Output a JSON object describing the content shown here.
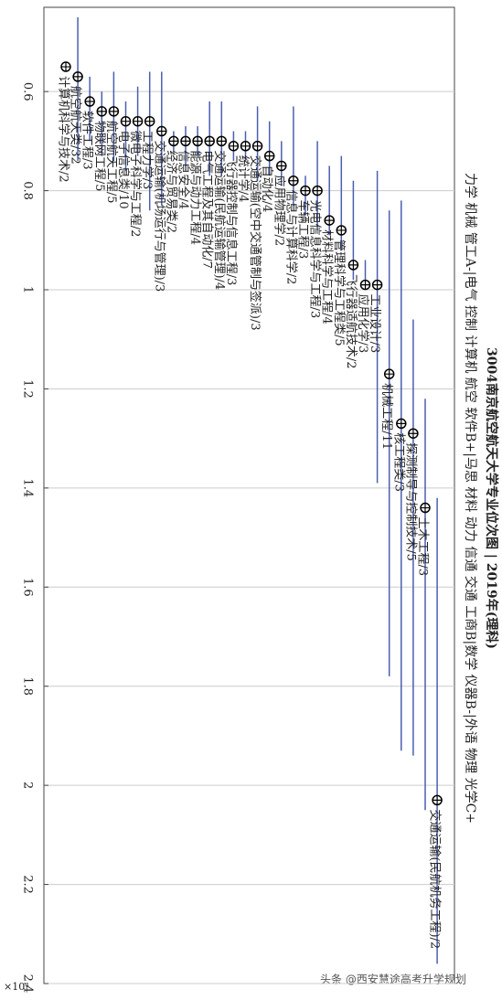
{
  "chart_data": {
    "type": "rank-range",
    "title": "3004南京航空航天大学专业位次图 | 2019年(理科)",
    "subtitle": "力学 机械 管工A-|电气 控制 计算机 航空 软件B+|马思 材料 动力 信通 交通 工商B|数学 仪器B-|外语 物理 光学C+",
    "exponent_label": "×10⁴",
    "watermark": "头条 @西安慧途高考升学规划",
    "categories": [
      "计算机科学与技术/2",
      "航空航天类/32",
      "软件工程/3",
      "物联网工程/5",
      "航空航天工程/5",
      "电子信息类/10",
      "微电子科学与工程/2",
      "工程力学/3",
      "交通运输(机场运行与管理)/3",
      "经济与贸易类/2",
      "信息安全/4",
      "能源与动力工程/4",
      "电气工程及其自动化/7",
      "交通运输(民航运输管理)/4",
      "飞行器控制与信息工程/3",
      "统计学/4",
      "交通运输(空中交通管制与签派)/3",
      "自动化/4",
      "应用物理学/2",
      "信息与计算科学/2",
      "车辆工程/3",
      "光电信息科学与工程/3",
      "材料科学与工程/4",
      "管理科学与工程类/5",
      "飞行器适航技术/2",
      "应用化学/3",
      "工业设计/3",
      "机械工程/11",
      "核工程类/3",
      "探测制导与控制技术/5",
      "土木工程/3",
      "交通运输(民航机务工程)/2"
    ],
    "values": [
      0.55,
      0.57,
      0.62,
      0.64,
      0.64,
      0.66,
      0.66,
      0.66,
      0.68,
      0.7,
      0.7,
      0.7,
      0.7,
      0.7,
      0.71,
      0.71,
      0.71,
      0.73,
      0.75,
      0.78,
      0.8,
      0.8,
      0.86,
      0.88,
      0.95,
      0.99,
      0.99,
      1.17,
      1.27,
      1.29,
      1.44,
      2.03
    ],
    "lower": [
      0.55,
      0.45,
      0.57,
      0.6,
      0.56,
      0.62,
      0.59,
      0.56,
      0.56,
      0.68,
      0.67,
      0.67,
      0.62,
      0.62,
      0.68,
      0.68,
      0.63,
      0.66,
      0.7,
      0.63,
      0.77,
      0.7,
      0.75,
      0.73,
      0.78,
      0.94,
      0.76,
      0.84,
      0.82,
      1.06,
      1.22,
      1.42
    ],
    "upper": [
      0.55,
      0.74,
      0.7,
      0.73,
      0.74,
      0.76,
      0.73,
      0.84,
      0.83,
      0.72,
      0.75,
      0.73,
      0.77,
      0.77,
      0.74,
      0.74,
      0.78,
      0.77,
      0.79,
      0.83,
      0.85,
      0.88,
      0.89,
      0.92,
      0.98,
      1.0,
      1.39,
      1.78,
      1.93,
      1.94,
      2.05,
      2.36
    ],
    "color": "#4a5fb0",
    "ylim": [
      0.43,
      2.4
    ],
    "yticks": [
      0.6,
      0.8,
      1,
      1.2,
      1.4,
      1.6,
      1.8,
      2,
      2.2,
      2.4
    ],
    "grid": true
  }
}
